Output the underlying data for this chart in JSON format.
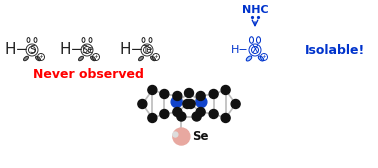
{
  "never_observed_text": "Never observed",
  "never_observed_color": "#ff0000",
  "never_observed_fontsize": 9,
  "isolable_text": "Isolable!",
  "isolable_color": "#0033cc",
  "isolable_fontsize": 9,
  "nhc_text": "NHC",
  "nhc_color": "#0033cc",
  "nhc_fontsize": 8,
  "bg_color": "#ffffff",
  "blue_color": "#0033cc",
  "black_color": "#111111",
  "gray_color": "#bbbbbb",
  "pink_color": "#e8a8a0",
  "nitrogen_color": "#1144cc",
  "se_label": "Se"
}
